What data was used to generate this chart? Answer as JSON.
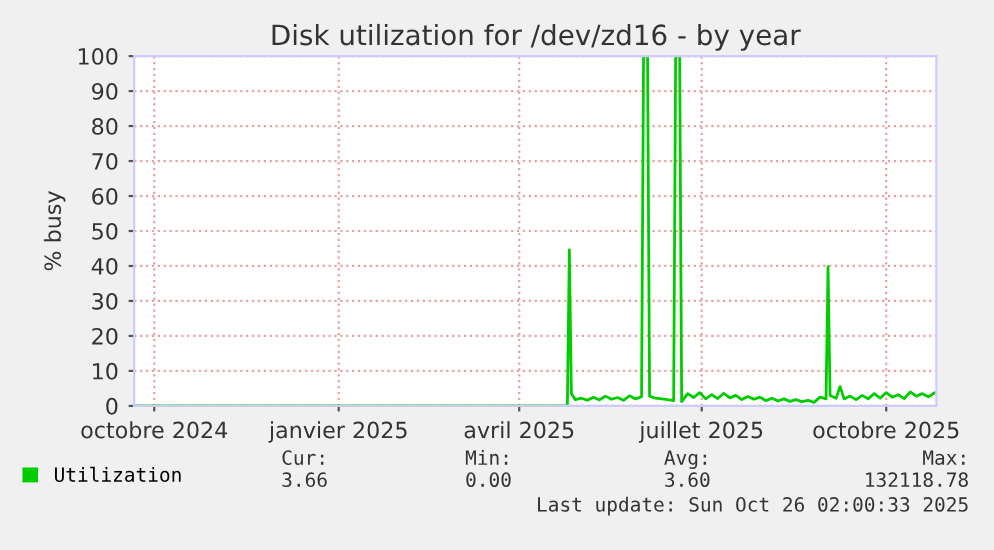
{
  "chart_data": {
    "type": "line",
    "title": "Disk utilization for /dev/zd16 - by year",
    "ylabel": "% busy",
    "xlim": [
      "2024-09-21",
      "2025-10-26"
    ],
    "xticks": [
      {
        "value": "2024-10-01",
        "label": "octobre 2024"
      },
      {
        "value": "2025-01-01",
        "label": "janvier 2025"
      },
      {
        "value": "2025-04-01",
        "label": "avril 2025"
      },
      {
        "value": "2025-07-01",
        "label": "juillet 2025"
      },
      {
        "value": "2025-10-01",
        "label": "octobre 2025"
      }
    ],
    "ylim": [
      0,
      100
    ],
    "yticks": [
      0,
      10,
      20,
      30,
      40,
      50,
      60,
      70,
      80,
      90,
      100
    ],
    "grid": true,
    "legend": "bottom left",
    "x": [
      "2024-09-21",
      "2025-04-25",
      "2025-04-26",
      "2025-04-27",
      "2025-04-29",
      "2025-05-02",
      "2025-05-05",
      "2025-05-08",
      "2025-05-11",
      "2025-05-14",
      "2025-05-17",
      "2025-05-20",
      "2025-05-23",
      "2025-05-26",
      "2025-05-29",
      "2025-06-01",
      "2025-06-02",
      "2025-06-04",
      "2025-06-05",
      "2025-06-08",
      "2025-06-11",
      "2025-06-14",
      "2025-06-17",
      "2025-06-18",
      "2025-06-20",
      "2025-06-21",
      "2025-06-24",
      "2025-06-27",
      "2025-06-30",
      "2025-07-03",
      "2025-07-06",
      "2025-07-09",
      "2025-07-12",
      "2025-07-15",
      "2025-07-18",
      "2025-07-21",
      "2025-07-24",
      "2025-07-27",
      "2025-07-30",
      "2025-08-02",
      "2025-08-05",
      "2025-08-08",
      "2025-08-11",
      "2025-08-14",
      "2025-08-17",
      "2025-08-20",
      "2025-08-23",
      "2025-08-26",
      "2025-08-29",
      "2025-09-01",
      "2025-09-02",
      "2025-09-03",
      "2025-09-06",
      "2025-09-08",
      "2025-09-10",
      "2025-09-13",
      "2025-09-16",
      "2025-09-19",
      "2025-09-22",
      "2025-09-25",
      "2025-09-28",
      "2025-10-01",
      "2025-10-04",
      "2025-10-07",
      "2025-10-10",
      "2025-10-13",
      "2025-10-16",
      "2025-10-19",
      "2025-10-22",
      "2025-10-25"
    ],
    "series": [
      {
        "name": "Utilization",
        "color": "#00cc00",
        "values": [
          0,
          0,
          44.6,
          3.5,
          1.8,
          2.2,
          1.6,
          2.5,
          1.7,
          2.8,
          1.9,
          2.4,
          1.6,
          2.9,
          2.0,
          2.6,
          100,
          100,
          2.8,
          2.2,
          2.0,
          1.8,
          1.5,
          100,
          100,
          1.2,
          3.5,
          2.4,
          3.8,
          2.0,
          3.2,
          2.1,
          3.6,
          2.3,
          3.0,
          1.8,
          2.7,
          1.9,
          2.5,
          1.5,
          2.2,
          1.4,
          2.0,
          1.3,
          1.8,
          1.2,
          1.6,
          1.0,
          2.5,
          2.0,
          39.8,
          3.0,
          2.2,
          5.5,
          2.0,
          2.8,
          1.8,
          3.0,
          2.0,
          3.5,
          2.2,
          3.8,
          2.5,
          3.2,
          2.1,
          4.0,
          2.8,
          3.5,
          2.6,
          3.7
        ]
      }
    ],
    "annotations": [
      "Cur:",
      "Min:",
      "Avg:",
      "Max:",
      "3.66",
      "0.00",
      "3.60",
      "132118.78",
      "Last update: Sun Oct 26 02:00:33 2025"
    ]
  }
}
